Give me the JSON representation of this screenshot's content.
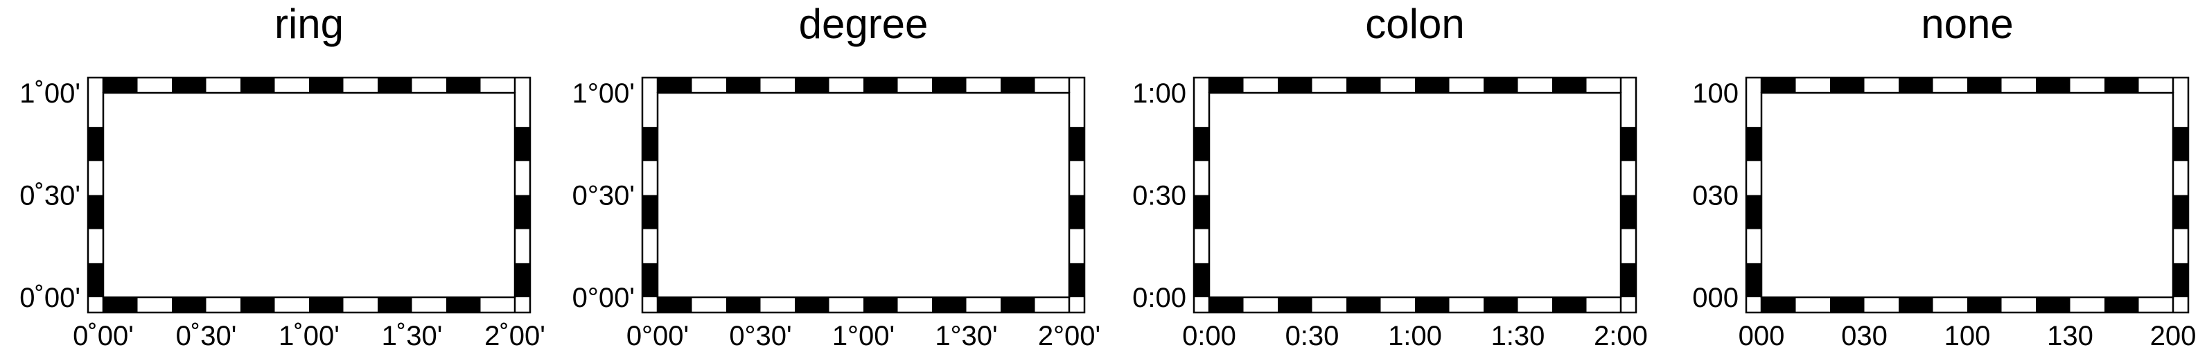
{
  "colors": {
    "ink": "#000000",
    "paper": "#ffffff"
  },
  "panels": [
    {
      "title": "ring",
      "x_labels": [
        "0˚00'",
        "0˚30'",
        "1˚00'",
        "1˚30'",
        "2˚00'"
      ],
      "y_labels": [
        "1˚00'",
        "0˚30'",
        "0˚00'"
      ]
    },
    {
      "title": "degree",
      "x_labels": [
        "0°00'",
        "0°30'",
        "1°00'",
        "1°30'",
        "2°00'"
      ],
      "y_labels": [
        "1°00'",
        "0°30'",
        "0°00'"
      ]
    },
    {
      "title": "colon",
      "x_labels": [
        "0:00",
        "0:30",
        "1:00",
        "1:30",
        "2:00"
      ],
      "y_labels": [
        "1:00",
        "0:30",
        "0:00"
      ]
    },
    {
      "title": "none",
      "x_labels": [
        "000",
        "030",
        "100",
        "130",
        "200"
      ],
      "y_labels": [
        "100",
        "030",
        "000"
      ]
    }
  ]
}
